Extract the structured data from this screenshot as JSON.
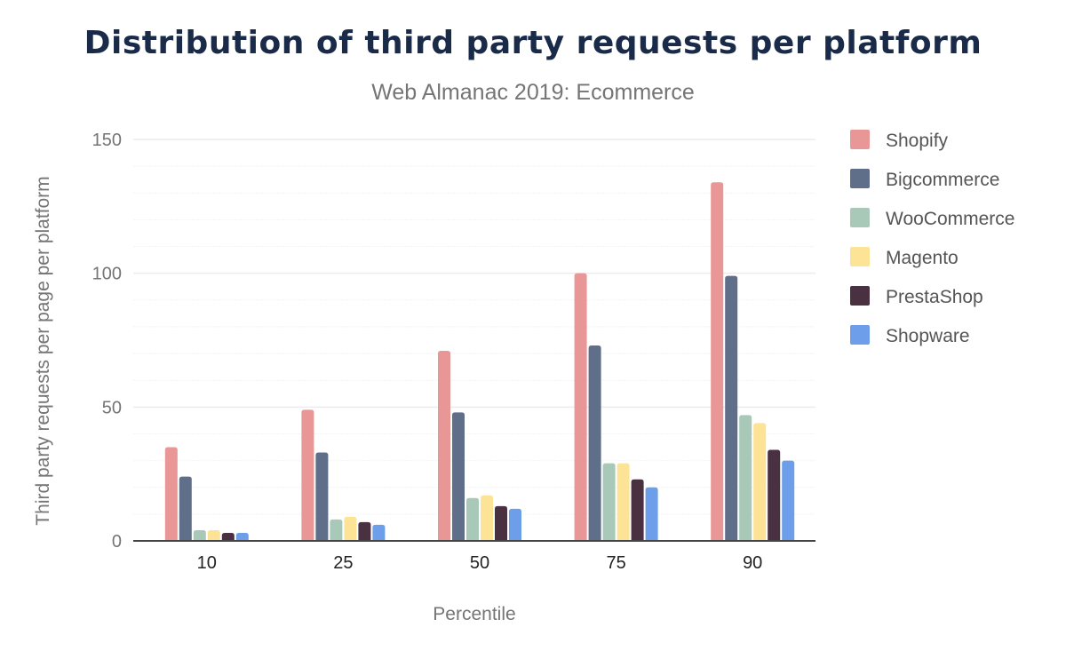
{
  "chart_data": {
    "type": "bar",
    "title": "Distribution of third party requests per platform",
    "subtitle": "Web Almanac 2019: Ecommerce",
    "xlabel": "Percentile",
    "ylabel": "Third party requests per page per platform",
    "categories": [
      "10",
      "25",
      "50",
      "75",
      "90"
    ],
    "ylim": [
      0,
      150
    ],
    "yticks": [
      "0",
      "50",
      "100",
      "150"
    ],
    "grid": true,
    "legend": "right",
    "series": [
      {
        "name": "Shopify",
        "color": "#e89696",
        "values": [
          35,
          49,
          71,
          100,
          134
        ]
      },
      {
        "name": "Bigcommerce",
        "color": "#5f6f8a",
        "values": [
          24,
          33,
          48,
          73,
          99
        ]
      },
      {
        "name": "WooCommerce",
        "color": "#a8c9b8",
        "values": [
          4,
          8,
          16,
          29,
          47
        ]
      },
      {
        "name": "Magento",
        "color": "#fde396",
        "values": [
          4,
          9,
          17,
          29,
          44
        ]
      },
      {
        "name": "PrestaShop",
        "color": "#4a3142",
        "values": [
          3,
          7,
          13,
          23,
          34
        ]
      },
      {
        "name": "Shopware",
        "color": "#6c9ee9",
        "values": [
          3,
          6,
          12,
          20,
          30
        ]
      }
    ]
  }
}
